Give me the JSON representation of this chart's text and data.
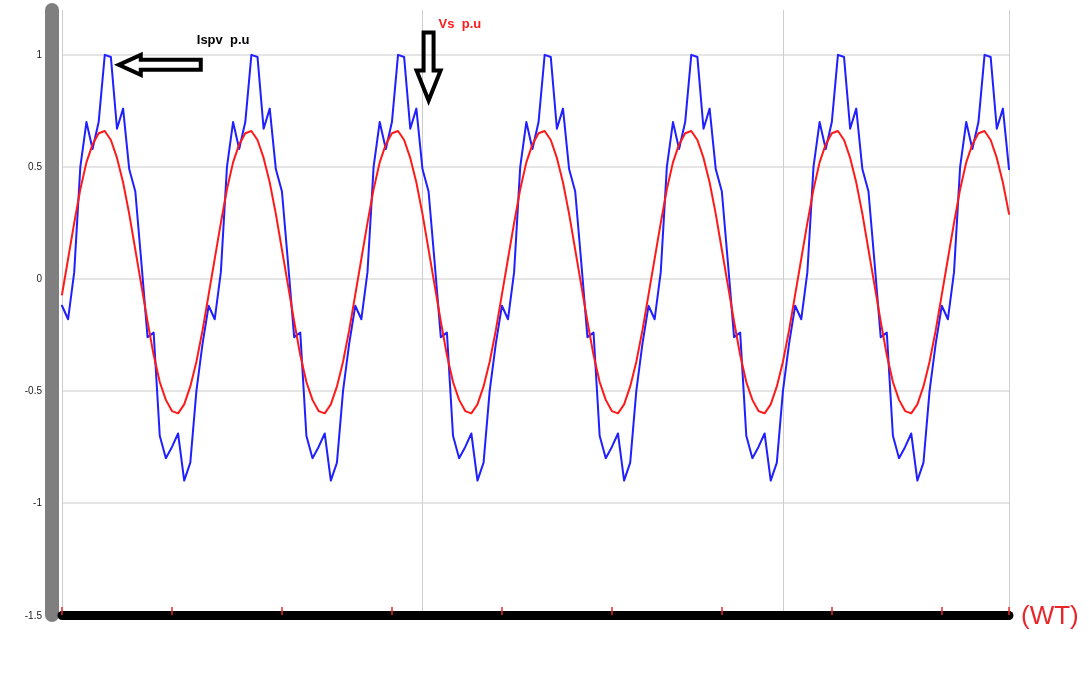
{
  "chart_data": {
    "type": "line",
    "xlabel": "(WT)",
    "categories": [
      null,
      null,
      null,
      null,
      null,
      null,
      null,
      null,
      null,
      null,
      null,
      null,
      null,
      null,
      null,
      null,
      null,
      null,
      null,
      null,
      null,
      null,
      null,
      null,
      null,
      null,
      null,
      null,
      null,
      null,
      null,
      null,
      null,
      null,
      null,
      null,
      null,
      null,
      null,
      null,
      null,
      null,
      null,
      null,
      null,
      null,
      null,
      null,
      null,
      null,
      null,
      null,
      null,
      null,
      null,
      null,
      null,
      null,
      null,
      null,
      null,
      null,
      null,
      null,
      null,
      null,
      null,
      null,
      null,
      null,
      null,
      null,
      null,
      null,
      null,
      null,
      null,
      null,
      null,
      null,
      null,
      null,
      null,
      null,
      null,
      null,
      null,
      null,
      null,
      null,
      null,
      null,
      null,
      null,
      null,
      null,
      null,
      null,
      null,
      null,
      null,
      null,
      null,
      null,
      null,
      null,
      null,
      null,
      null,
      null,
      null,
      null,
      null,
      null,
      null,
      null,
      null,
      null,
      null,
      null,
      null,
      null,
      null,
      null,
      null,
      null,
      null,
      null,
      null,
      null,
      null,
      null,
      null,
      null,
      null,
      null,
      null,
      null,
      null,
      null,
      null,
      null,
      null,
      null,
      null,
      null,
      null,
      null,
      null,
      null,
      null,
      null,
      null,
      null,
      null,
      null
    ],
    "series": [
      {
        "name": "Ispv  p.u",
        "color": "#1f1fff",
        "values": [
          -0.12,
          -0.18,
          0.03,
          0.5,
          0.7,
          0.58,
          0.7,
          1.0,
          0.99,
          0.67,
          0.76,
          0.49,
          0.39,
          0.07,
          -0.26,
          -0.24,
          -0.7,
          -0.8,
          -0.75,
          -0.69,
          -0.9,
          -0.82,
          -0.5,
          -0.29,
          -0.12,
          -0.18,
          0.03,
          0.5,
          0.7,
          0.58,
          0.7,
          1.0,
          0.99,
          0.67,
          0.76,
          0.49,
          0.39,
          0.07,
          -0.26,
          -0.24,
          -0.7,
          -0.8,
          -0.75,
          -0.69,
          -0.9,
          -0.82,
          -0.5,
          -0.29,
          -0.12,
          -0.18,
          0.03,
          0.5,
          0.7,
          0.58,
          0.7,
          1.0,
          0.99,
          0.67,
          0.76,
          0.49,
          0.39,
          0.07,
          -0.26,
          -0.24,
          -0.7,
          -0.8,
          -0.75,
          -0.69,
          -0.9,
          -0.82,
          -0.5,
          -0.29,
          -0.12,
          -0.18,
          0.03,
          0.5,
          0.7,
          0.58,
          0.7,
          1.0,
          0.99,
          0.67,
          0.76,
          0.49,
          0.39,
          0.07,
          -0.26,
          -0.24,
          -0.7,
          -0.8,
          -0.75,
          -0.69,
          -0.9,
          -0.82,
          -0.5,
          -0.29,
          -0.12,
          -0.18,
          0.03,
          0.5,
          0.7,
          0.58,
          0.7,
          1.0,
          0.99,
          0.67,
          0.76,
          0.49,
          0.39,
          0.07,
          -0.26,
          -0.24,
          -0.7,
          -0.8,
          -0.75,
          -0.69,
          -0.9,
          -0.82,
          -0.5,
          -0.29,
          -0.12,
          -0.18,
          0.03,
          0.5,
          0.7,
          0.58,
          0.7,
          1.0,
          0.99,
          0.67,
          0.76,
          0.49,
          0.39,
          0.07,
          -0.26,
          -0.24,
          -0.7,
          -0.8,
          -0.75,
          -0.69,
          -0.9,
          -0.82,
          -0.5,
          -0.29,
          -0.12,
          -0.18,
          0.03,
          0.5,
          0.7,
          0.58,
          0.7,
          1.0,
          0.99,
          0.67,
          0.76,
          0.49
        ]
      },
      {
        "name": "Vs  p.u",
        "color": "#ff1a1a",
        "values": [
          -0.07,
          0.09,
          0.25,
          0.4,
          0.52,
          0.6,
          0.65,
          0.66,
          0.62,
          0.54,
          0.43,
          0.29,
          0.13,
          -0.03,
          -0.19,
          -0.34,
          -0.46,
          -0.54,
          -0.59,
          -0.6,
          -0.56,
          -0.48,
          -0.37,
          -0.23,
          -0.07,
          0.09,
          0.25,
          0.4,
          0.52,
          0.6,
          0.65,
          0.66,
          0.62,
          0.54,
          0.43,
          0.29,
          0.13,
          -0.03,
          -0.19,
          -0.34,
          -0.46,
          -0.54,
          -0.59,
          -0.6,
          -0.56,
          -0.48,
          -0.37,
          -0.23,
          -0.07,
          0.09,
          0.25,
          0.4,
          0.52,
          0.6,
          0.65,
          0.66,
          0.62,
          0.54,
          0.43,
          0.29,
          0.13,
          -0.03,
          -0.19,
          -0.34,
          -0.46,
          -0.54,
          -0.59,
          -0.6,
          -0.56,
          -0.48,
          -0.37,
          -0.23,
          -0.07,
          0.09,
          0.25,
          0.4,
          0.52,
          0.6,
          0.65,
          0.66,
          0.62,
          0.54,
          0.43,
          0.29,
          0.13,
          -0.03,
          -0.19,
          -0.34,
          -0.46,
          -0.54,
          -0.59,
          -0.6,
          -0.56,
          -0.48,
          -0.37,
          -0.23,
          -0.07,
          0.09,
          0.25,
          0.4,
          0.52,
          0.6,
          0.65,
          0.66,
          0.62,
          0.54,
          0.43,
          0.29,
          0.13,
          -0.03,
          -0.19,
          -0.34,
          -0.46,
          -0.54,
          -0.59,
          -0.6,
          -0.56,
          -0.48,
          -0.37,
          -0.23,
          -0.07,
          0.09,
          0.25,
          0.4,
          0.52,
          0.6,
          0.65,
          0.66,
          0.62,
          0.54,
          0.43,
          0.29,
          0.13,
          -0.03,
          -0.19,
          -0.34,
          -0.46,
          -0.54,
          -0.59,
          -0.6,
          -0.56,
          -0.48,
          -0.37,
          -0.23,
          -0.07,
          0.09,
          0.25,
          0.4,
          0.52,
          0.6,
          0.65,
          0.66,
          0.62,
          0.54,
          0.43,
          0.29
        ]
      }
    ],
    "ylim": [
      -1.5,
      1.2
    ],
    "yticks": [
      -1.5,
      -1,
      -0.5,
      0,
      0.5,
      1
    ],
    "grid": true,
    "marker": "none",
    "line_style": "solid"
  }
}
